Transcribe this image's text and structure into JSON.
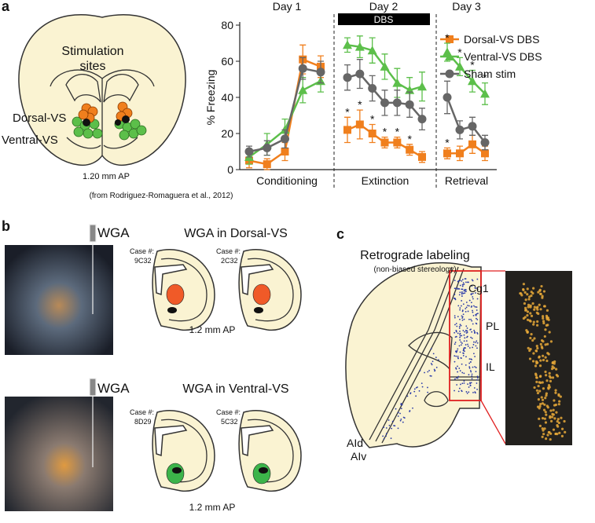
{
  "panels": {
    "a": "a",
    "b": "b",
    "c": "c"
  },
  "panel_a": {
    "title_lines": [
      "Stimulation",
      "sites"
    ],
    "dorsal": "Dorsal-VS",
    "ventral": "Ventral-VS",
    "ap": "1.20 mm AP",
    "source": "(from Rodriguez-Romaguera et al., 2012)"
  },
  "chart_data": {
    "type": "line",
    "ylabel": "% Freezing",
    "ylim": [
      0,
      80
    ],
    "yticks": [
      0,
      20,
      40,
      60,
      80
    ],
    "days": [
      "Day 1",
      "Day 2",
      "Day 3"
    ],
    "dbs_label": "DBS",
    "phases": [
      "Conditioning",
      "Extinction",
      "Retrieval"
    ],
    "series": [
      {
        "name": "Dorsal-VS DBS",
        "color": "#f07f1d",
        "marker": "square",
        "values": [
          [
            5,
            3,
            10,
            61,
            57
          ],
          [
            22,
            25,
            20,
            15,
            15,
            11,
            7
          ],
          [
            9,
            9,
            14,
            9
          ]
        ],
        "errors": [
          [
            4,
            3,
            5,
            8,
            6
          ],
          [
            7,
            8,
            5,
            3,
            3,
            3,
            3
          ],
          [
            3,
            4,
            5,
            4
          ]
        ],
        "stars": [
          [
            null,
            null,
            null,
            null,
            null
          ],
          [
            "*",
            "*",
            "*",
            "*",
            "*",
            "*",
            null
          ],
          [
            "*",
            null,
            null,
            null
          ]
        ]
      },
      {
        "name": "Ventral-VS DBS",
        "color": "#5cbf4a",
        "marker": "triangle",
        "values": [
          [
            7,
            14,
            22,
            44,
            49
          ],
          [
            69,
            68,
            66,
            57,
            48,
            44,
            46
          ],
          [
            65,
            57,
            49,
            42
          ]
        ],
        "errors": [
          [
            4,
            6,
            6,
            7,
            6
          ],
          [
            4,
            6,
            7,
            7,
            8,
            7,
            8
          ],
          [
            5,
            5,
            6,
            6
          ]
        ],
        "stars": [
          [
            null,
            null,
            null,
            null,
            null
          ],
          [
            null,
            null,
            null,
            null,
            null,
            null,
            null
          ],
          [
            "*",
            "*",
            "*",
            "*"
          ]
        ]
      },
      {
        "name": "Sham stim",
        "color": "#666666",
        "marker": "circle",
        "values": [
          [
            10,
            12,
            17,
            56,
            54
          ],
          [
            51,
            53,
            45,
            37,
            37,
            36,
            28
          ],
          [
            40,
            22,
            24,
            15
          ]
        ],
        "errors": [
          [
            3,
            4,
            5,
            6,
            6
          ],
          [
            7,
            8,
            7,
            7,
            7,
            7,
            6
          ],
          [
            9,
            5,
            5,
            4
          ]
        ],
        "stars": [
          [
            null,
            null,
            null,
            null,
            null
          ],
          [
            null,
            null,
            null,
            null,
            null,
            null,
            null
          ],
          [
            null,
            null,
            null,
            null
          ]
        ]
      }
    ]
  },
  "panel_b": {
    "rows": [
      {
        "tracer": "WGA",
        "title": "WGA in Dorsal-VS",
        "cases": [
          {
            "label": "Case #:",
            "id": "9C32"
          },
          {
            "label": "Case #:",
            "id": "2C32"
          }
        ],
        "ap": "1.2 mm AP"
      },
      {
        "tracer": "WGA",
        "title": "WGA in Ventral-VS",
        "cases": [
          {
            "label": "Case #:",
            "id": "8D29"
          },
          {
            "label": "Case #:",
            "id": "5C32"
          }
        ],
        "ap": "1.2 mm AP"
      }
    ]
  },
  "panel_c": {
    "title": "Retrograde labeling",
    "subtitle": "(non-biased stereology)",
    "regions": [
      "Cg1",
      "PL",
      "IL",
      "AId",
      "AIv"
    ]
  }
}
